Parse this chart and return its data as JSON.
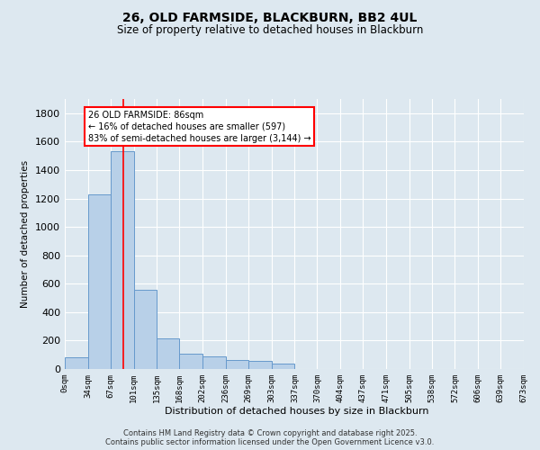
{
  "title": "26, OLD FARMSIDE, BLACKBURN, BB2 4UL",
  "subtitle": "Size of property relative to detached houses in Blackburn",
  "xlabel": "Distribution of detached houses by size in Blackburn",
  "ylabel": "Number of detached properties",
  "bar_color": "#b8d0e8",
  "bar_edge_color": "#6699cc",
  "background_color": "#dde8f0",
  "grid_color": "#ffffff",
  "property_line_x": 86,
  "annotation_text": "26 OLD FARMSIDE: 86sqm\n← 16% of detached houses are smaller (597)\n83% of semi-detached houses are larger (3,144) →",
  "footer1": "Contains HM Land Registry data © Crown copyright and database right 2025.",
  "footer2": "Contains public sector information licensed under the Open Government Licence v3.0.",
  "bins": [
    0,
    34,
    67,
    101,
    135,
    168,
    202,
    236,
    269,
    303,
    337,
    370,
    404,
    437,
    471,
    505,
    538,
    572,
    606,
    639,
    673
  ],
  "bin_labels": [
    "0sqm",
    "34sqm",
    "67sqm",
    "101sqm",
    "135sqm",
    "168sqm",
    "202sqm",
    "236sqm",
    "269sqm",
    "303sqm",
    "337sqm",
    "370sqm",
    "404sqm",
    "437sqm",
    "471sqm",
    "505sqm",
    "538sqm",
    "572sqm",
    "606sqm",
    "639sqm",
    "673sqm"
  ],
  "counts": [
    80,
    1230,
    1530,
    560,
    215,
    110,
    90,
    65,
    55,
    35,
    0,
    0,
    0,
    0,
    0,
    0,
    0,
    0,
    0,
    0
  ],
  "ylim": [
    0,
    1900
  ],
  "yticks": [
    0,
    200,
    400,
    600,
    800,
    1000,
    1200,
    1400,
    1600,
    1800
  ]
}
